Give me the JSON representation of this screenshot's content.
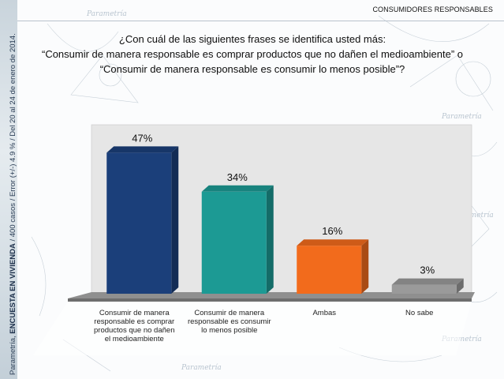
{
  "header": {
    "section": "CONSUMIDORES RESPONSABLES"
  },
  "question": {
    "line1": "¿Con cuál de las siguientes frases se identifica usted más:",
    "line2": "“Consumir de manera responsable es comprar productos que no dañen el medioambiente” o",
    "line3": "“Consumir de manera responsable es consumir lo menos posible”?"
  },
  "source": {
    "brand": "Parametría,",
    "survey": "ENCUESTA EN VIVIENDA",
    "details": "/ 400 casos / Error (+/-) 4.9 % / Del 20 al 24 de enero de 2014."
  },
  "background": {
    "watermark": "Parametría"
  },
  "chart_data": {
    "type": "bar",
    "categories": [
      [
        "Consumir de manera",
        "responsable es comprar",
        "productos que no dañen",
        "el medioambiente"
      ],
      [
        "Consumir de manera",
        "responsable es consumir",
        "lo menos posible"
      ],
      [
        "Ambas"
      ],
      [
        "No sabe"
      ]
    ],
    "values": [
      47,
      34,
      16,
      3
    ],
    "labels": [
      "47%",
      "34%",
      "16%",
      "3%"
    ],
    "colors": [
      "#1b3f7a",
      "#1c9a94",
      "#f26b1c",
      "#9a9a9a"
    ],
    "ylim": [
      0,
      50
    ],
    "grid": false,
    "legend": "none"
  }
}
